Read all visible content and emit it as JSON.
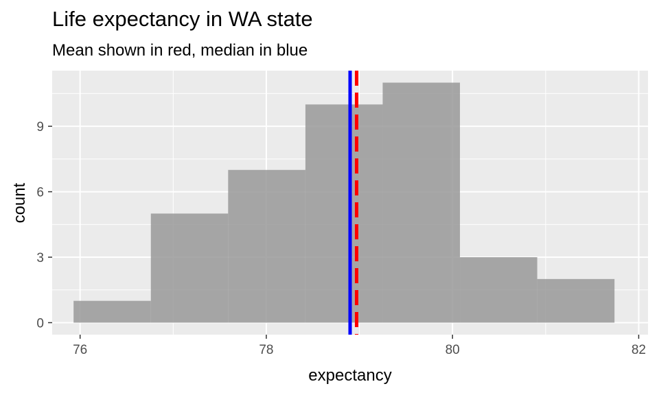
{
  "chart_data": {
    "type": "bar",
    "title": "Life expectancy in WA state",
    "subtitle": "Mean shown in red, median in blue",
    "xlabel": "expectancy",
    "ylabel": "count",
    "xlim": [
      75.7,
      82.1
    ],
    "ylim": [
      -0.55,
      11.55
    ],
    "x_ticks": [
      76,
      78,
      80,
      82
    ],
    "x_tick_labels": [
      "76",
      "78",
      "80",
      "82"
    ],
    "y_ticks": [
      0,
      3,
      6,
      9
    ],
    "y_tick_labels": [
      "0",
      "3",
      "6",
      "9"
    ],
    "bins": [
      {
        "x0": 75.93,
        "x1": 76.76,
        "count": 1
      },
      {
        "x0": 76.76,
        "x1": 77.59,
        "count": 5
      },
      {
        "x0": 77.59,
        "x1": 78.42,
        "count": 7
      },
      {
        "x0": 78.42,
        "x1": 79.25,
        "count": 10
      },
      {
        "x0": 79.25,
        "x1": 80.08,
        "count": 11
      },
      {
        "x0": 80.08,
        "x1": 80.91,
        "count": 3
      },
      {
        "x0": 80.91,
        "x1": 81.74,
        "count": 2
      }
    ],
    "mean": 78.97,
    "median": 78.9,
    "bar_color": "#999999",
    "mean_color": "#ff0000",
    "median_color": "#0000ff",
    "panel_background": "#ebebeb",
    "grid": true
  }
}
